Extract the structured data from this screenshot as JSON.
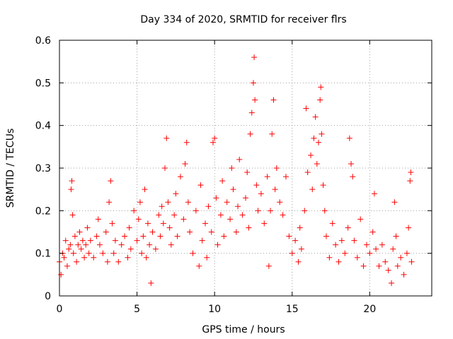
{
  "chart_data": {
    "type": "scatter",
    "title": "Day 334 of 2020, SRMTID for receiver flrs",
    "xlabel": "GPS time / hours",
    "ylabel": "SRMTID / TECUs",
    "xlim": [
      0,
      24
    ],
    "ylim": [
      0,
      0.6
    ],
    "xticks": [
      "0",
      "5",
      "10",
      "15",
      "20"
    ],
    "yticks": [
      "0",
      "0.1",
      "0.2",
      "0.3",
      "0.4",
      "0.5",
      "0.6"
    ],
    "grid": true,
    "marker": "+",
    "series": [
      {
        "name": "flrs",
        "color": "#ff0000",
        "points": [
          [
            0.0,
            0.08
          ],
          [
            0.1,
            0.05
          ],
          [
            0.2,
            0.1
          ],
          [
            0.3,
            0.09
          ],
          [
            0.4,
            0.13
          ],
          [
            0.5,
            0.07
          ],
          [
            0.6,
            0.11
          ],
          [
            0.7,
            0.12
          ],
          [
            0.75,
            0.25
          ],
          [
            0.8,
            0.27
          ],
          [
            0.85,
            0.19
          ],
          [
            0.9,
            0.1
          ],
          [
            1.0,
            0.14
          ],
          [
            1.1,
            0.08
          ],
          [
            1.2,
            0.12
          ],
          [
            1.3,
            0.15
          ],
          [
            1.4,
            0.11
          ],
          [
            1.5,
            0.13
          ],
          [
            1.6,
            0.09
          ],
          [
            1.7,
            0.12
          ],
          [
            1.8,
            0.16
          ],
          [
            1.9,
            0.1
          ],
          [
            2.0,
            0.13
          ],
          [
            2.2,
            0.09
          ],
          [
            2.4,
            0.14
          ],
          [
            2.5,
            0.18
          ],
          [
            2.6,
            0.12
          ],
          [
            2.8,
            0.1
          ],
          [
            3.0,
            0.15
          ],
          [
            3.1,
            0.08
          ],
          [
            3.2,
            0.22
          ],
          [
            3.3,
            0.27
          ],
          [
            3.4,
            0.17
          ],
          [
            3.5,
            0.1
          ],
          [
            3.6,
            0.13
          ],
          [
            3.8,
            0.08
          ],
          [
            4.0,
            0.12
          ],
          [
            4.2,
            0.14
          ],
          [
            4.4,
            0.09
          ],
          [
            4.5,
            0.16
          ],
          [
            4.6,
            0.11
          ],
          [
            4.8,
            0.2
          ],
          [
            5.0,
            0.13
          ],
          [
            5.1,
            0.18
          ],
          [
            5.2,
            0.22
          ],
          [
            5.3,
            0.1
          ],
          [
            5.4,
            0.14
          ],
          [
            5.5,
            0.25
          ],
          [
            5.6,
            0.09
          ],
          [
            5.7,
            0.17
          ],
          [
            5.8,
            0.12
          ],
          [
            5.9,
            0.03
          ],
          [
            6.0,
            0.15
          ],
          [
            6.2,
            0.11
          ],
          [
            6.4,
            0.19
          ],
          [
            6.5,
            0.14
          ],
          [
            6.6,
            0.21
          ],
          [
            6.7,
            0.17
          ],
          [
            6.8,
            0.3
          ],
          [
            6.9,
            0.37
          ],
          [
            7.0,
            0.22
          ],
          [
            7.1,
            0.16
          ],
          [
            7.2,
            0.12
          ],
          [
            7.4,
            0.19
          ],
          [
            7.5,
            0.24
          ],
          [
            7.6,
            0.14
          ],
          [
            7.8,
            0.28
          ],
          [
            8.0,
            0.18
          ],
          [
            8.1,
            0.31
          ],
          [
            8.2,
            0.36
          ],
          [
            8.3,
            0.22
          ],
          [
            8.4,
            0.15
          ],
          [
            8.6,
            0.1
          ],
          [
            8.8,
            0.2
          ],
          [
            9.0,
            0.07
          ],
          [
            9.1,
            0.26
          ],
          [
            9.2,
            0.13
          ],
          [
            9.4,
            0.17
          ],
          [
            9.5,
            0.09
          ],
          [
            9.6,
            0.21
          ],
          [
            9.8,
            0.15
          ],
          [
            9.9,
            0.36
          ],
          [
            10.0,
            0.37
          ],
          [
            10.1,
            0.23
          ],
          [
            10.2,
            0.12
          ],
          [
            10.4,
            0.19
          ],
          [
            10.5,
            0.27
          ],
          [
            10.6,
            0.14
          ],
          [
            10.8,
            0.22
          ],
          [
            11.0,
            0.18
          ],
          [
            11.1,
            0.3
          ],
          [
            11.2,
            0.25
          ],
          [
            11.4,
            0.15
          ],
          [
            11.5,
            0.21
          ],
          [
            11.6,
            0.32
          ],
          [
            11.8,
            0.19
          ],
          [
            12.0,
            0.23
          ],
          [
            12.1,
            0.29
          ],
          [
            12.2,
            0.16
          ],
          [
            12.3,
            0.38
          ],
          [
            12.4,
            0.43
          ],
          [
            12.5,
            0.5
          ],
          [
            12.55,
            0.56
          ],
          [
            12.6,
            0.46
          ],
          [
            12.7,
            0.26
          ],
          [
            12.8,
            0.2
          ],
          [
            13.0,
            0.24
          ],
          [
            13.2,
            0.17
          ],
          [
            13.4,
            0.28
          ],
          [
            13.5,
            0.07
          ],
          [
            13.6,
            0.2
          ],
          [
            13.7,
            0.38
          ],
          [
            13.8,
            0.46
          ],
          [
            13.9,
            0.25
          ],
          [
            14.0,
            0.3
          ],
          [
            14.2,
            0.22
          ],
          [
            14.4,
            0.19
          ],
          [
            14.6,
            0.28
          ],
          [
            14.8,
            0.14
          ],
          [
            15.0,
            0.1
          ],
          [
            15.2,
            0.13
          ],
          [
            15.4,
            0.08
          ],
          [
            15.5,
            0.16
          ],
          [
            15.6,
            0.11
          ],
          [
            15.8,
            0.2
          ],
          [
            15.9,
            0.44
          ],
          [
            16.0,
            0.29
          ],
          [
            16.2,
            0.33
          ],
          [
            16.3,
            0.25
          ],
          [
            16.4,
            0.37
          ],
          [
            16.5,
            0.42
          ],
          [
            16.6,
            0.31
          ],
          [
            16.7,
            0.36
          ],
          [
            16.8,
            0.46
          ],
          [
            16.85,
            0.49
          ],
          [
            16.9,
            0.38
          ],
          [
            17.0,
            0.26
          ],
          [
            17.1,
            0.2
          ],
          [
            17.2,
            0.14
          ],
          [
            17.4,
            0.09
          ],
          [
            17.6,
            0.17
          ],
          [
            17.8,
            0.12
          ],
          [
            18.0,
            0.08
          ],
          [
            18.2,
            0.13
          ],
          [
            18.4,
            0.1
          ],
          [
            18.6,
            0.16
          ],
          [
            18.7,
            0.37
          ],
          [
            18.8,
            0.31
          ],
          [
            18.9,
            0.28
          ],
          [
            19.0,
            0.13
          ],
          [
            19.2,
            0.09
          ],
          [
            19.4,
            0.18
          ],
          [
            19.6,
            0.07
          ],
          [
            19.8,
            0.12
          ],
          [
            20.0,
            0.1
          ],
          [
            20.2,
            0.15
          ],
          [
            20.3,
            0.24
          ],
          [
            20.4,
            0.11
          ],
          [
            20.6,
            0.07
          ],
          [
            20.8,
            0.12
          ],
          [
            21.0,
            0.08
          ],
          [
            21.2,
            0.06
          ],
          [
            21.4,
            0.03
          ],
          [
            21.5,
            0.11
          ],
          [
            21.6,
            0.22
          ],
          [
            21.7,
            0.14
          ],
          [
            21.8,
            0.07
          ],
          [
            22.0,
            0.09
          ],
          [
            22.2,
            0.05
          ],
          [
            22.4,
            0.1
          ],
          [
            22.5,
            0.16
          ],
          [
            22.6,
            0.27
          ],
          [
            22.65,
            0.29
          ],
          [
            22.7,
            0.08
          ]
        ]
      }
    ]
  }
}
